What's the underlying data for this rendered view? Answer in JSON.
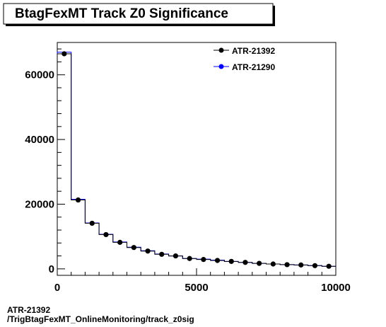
{
  "chart_data": {
    "type": "line",
    "title": "BtagFexMT Track Z0 Significance",
    "xlabel": "",
    "ylabel": "",
    "xlim": [
      0,
      10000
    ],
    "ylim": [
      -2000,
      70000
    ],
    "x_ticks": [
      0,
      5000,
      10000
    ],
    "y_ticks": [
      0,
      20000,
      40000,
      60000
    ],
    "bin_edges": [
      0,
      500,
      1000,
      1500,
      2000,
      2500,
      3000,
      3500,
      4000,
      4500,
      5000,
      5500,
      6000,
      6500,
      7000,
      7500,
      8000,
      8500,
      9000,
      9500,
      10000
    ],
    "legend_position": "top-right",
    "series": [
      {
        "name": "ATR-21392",
        "color": "#000000",
        "style": "markers",
        "x": [
          250,
          750,
          1250,
          1750,
          2250,
          2750,
          3250,
          3750,
          4250,
          4750,
          5250,
          5750,
          6250,
          6750,
          7250,
          7750,
          8250,
          8750,
          9250,
          9750
        ],
        "values": [
          66500,
          21300,
          14100,
          10600,
          8200,
          6600,
          5500,
          4500,
          4000,
          3200,
          2900,
          2600,
          2300,
          2000,
          1700,
          1500,
          1300,
          1200,
          1000,
          800
        ]
      },
      {
        "name": "ATR-21290",
        "color": "#0000ff",
        "style": "histogram",
        "x": [
          250,
          750,
          1250,
          1750,
          2250,
          2750,
          3250,
          3750,
          4250,
          4750,
          5250,
          5750,
          6250,
          6750,
          7250,
          7750,
          8250,
          8750,
          9250,
          9750
        ],
        "values": [
          67000,
          21500,
          14200,
          10700,
          8300,
          6700,
          5600,
          4600,
          4000,
          3200,
          3000,
          2700,
          2300,
          2000,
          1700,
          1500,
          1300,
          1200,
          1000,
          800
        ]
      }
    ]
  },
  "footer": {
    "line1": "ATR-21392",
    "line2": "/TrigBtagFexMT_OnlineMonitoring/track_z0sig"
  },
  "colors": {
    "background": "#ffffff",
    "frame": "#000000"
  }
}
